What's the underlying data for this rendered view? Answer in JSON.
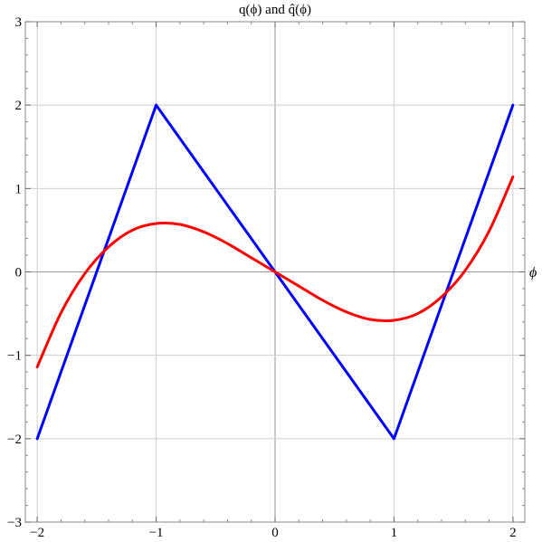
{
  "chart_data": {
    "type": "line",
    "title": "q(ϕ) and q̂(ϕ)",
    "xlabel": "ϕ",
    "ylabel": "",
    "xlim": [
      -2.1,
      2.1
    ],
    "ylim": [
      -3,
      3
    ],
    "x_ticks": [
      -2,
      -1,
      0,
      1,
      2
    ],
    "y_ticks": [
      -3,
      -2,
      -1,
      0,
      1,
      2,
      3
    ],
    "x_tick_labels": [
      "−2",
      "−1",
      "0",
      "1",
      "2"
    ],
    "y_tick_labels": [
      "−3",
      "−2",
      "−1",
      "0",
      "1",
      "2",
      "3"
    ],
    "grid": true,
    "series": [
      {
        "color": "#0000ff",
        "x": [
          -2,
          -1,
          1,
          2
        ],
        "y": [
          -2,
          2,
          -2,
          2
        ]
      },
      {
        "color": "#ff0000",
        "x": [
          -2,
          -1.8,
          -1.6,
          -1.4,
          -1.2,
          -1,
          -0.8,
          -0.6,
          -0.4,
          -0.2,
          0,
          0.2,
          0.4,
          0.6,
          0.8,
          1,
          1.2,
          1.4,
          1.6,
          1.8,
          2
        ],
        "y": [
          -1.14,
          -0.49,
          -0.02,
          0.3,
          0.5,
          0.58,
          0.57,
          0.48,
          0.34,
          0.17,
          0,
          -0.17,
          -0.34,
          -0.48,
          -0.57,
          -0.58,
          -0.5,
          -0.3,
          0.02,
          0.49,
          1.14
        ]
      }
    ]
  }
}
